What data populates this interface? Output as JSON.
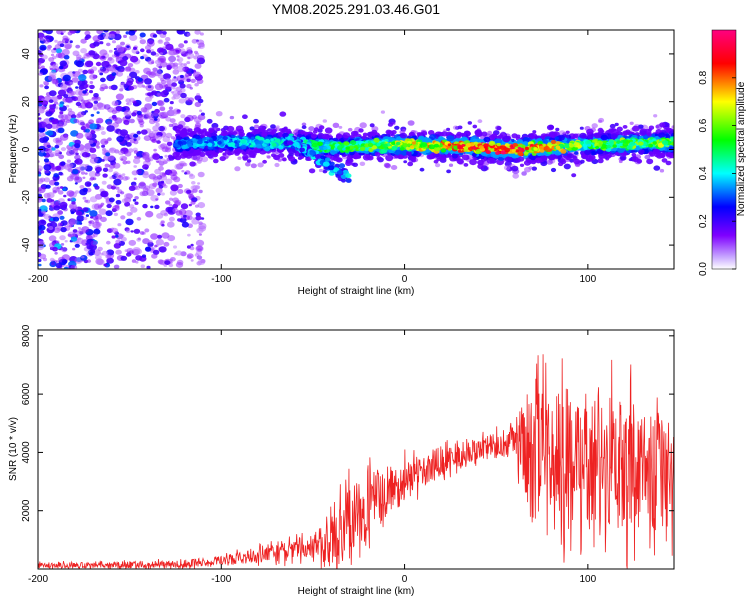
{
  "chart_data": [
    {
      "type": "heatmap",
      "title": "YM08.2025.291.03.46.G01",
      "xlabel": "Height of straight line (km)",
      "ylabel": "Frequency (Hz)",
      "xlim": [
        -200,
        147
      ],
      "ylim": [
        -50,
        50
      ],
      "x_ticks": [
        -200,
        -100,
        0,
        100
      ],
      "y_ticks": [
        -40,
        -20,
        0,
        20,
        40
      ],
      "colorbar": {
        "label": "Normalized spectral amplitude",
        "range": [
          0,
          1
        ],
        "ticks": [
          0.0,
          0.2,
          0.4,
          0.6,
          0.8
        ],
        "colormap": [
          "#ffffff",
          "#7f00ff",
          "#0000ff",
          "#00ffff",
          "#00ff00",
          "#ffff00",
          "#ff0000",
          "#ff0080"
        ]
      },
      "ridge": {
        "description": "narrow-band signal near 0 Hz",
        "x_start": -125,
        "x_end": 147,
        "center_freq": [
          [
            -125,
            2
          ],
          [
            -100,
            3
          ],
          [
            -60,
            3
          ],
          [
            -40,
            1
          ],
          [
            0,
            2
          ],
          [
            40,
            1
          ],
          [
            60,
            0
          ],
          [
            100,
            2
          ],
          [
            147,
            3
          ]
        ],
        "half_width_hz": 3,
        "peak_amplitude": [
          [
            -125,
            0.35
          ],
          [
            -60,
            0.45
          ],
          [
            -20,
            0.6
          ],
          [
            0,
            0.7
          ],
          [
            40,
            0.95
          ],
          [
            60,
            0.95
          ],
          [
            100,
            0.6
          ],
          [
            147,
            0.65
          ]
        ]
      },
      "noise_region": {
        "x_start": -200,
        "x_end": -110,
        "amplitude_range": [
          0.05,
          0.3
        ]
      },
      "streak": {
        "x": [
          -65,
          -30
        ],
        "freq": [
          5,
          -12
        ]
      }
    },
    {
      "type": "line",
      "title": "",
      "xlabel": "Height of straight line (km)",
      "ylabel": "SNR (10 * v/v)",
      "xlim": [
        -200,
        147
      ],
      "ylim": [
        0,
        8200
      ],
      "x_ticks": [
        -200,
        -100,
        0,
        100
      ],
      "y_ticks": [
        2000,
        4000,
        6000,
        8000
      ],
      "color": "#ee2222",
      "series": [
        {
          "name": "SNR",
          "envelope_mean": [
            [
              -200,
              130
            ],
            [
              -150,
              130
            ],
            [
              -120,
              170
            ],
            [
              -100,
              300
            ],
            [
              -80,
              450
            ],
            [
              -60,
              650
            ],
            [
              -40,
              1000
            ],
            [
              -30,
              1700
            ],
            [
              -20,
              2200
            ],
            [
              0,
              3000
            ],
            [
              20,
              3700
            ],
            [
              40,
              4100
            ],
            [
              55,
              4300
            ],
            [
              60,
              4600
            ],
            [
              70,
              3800
            ],
            [
              80,
              3500
            ],
            [
              90,
              3800
            ],
            [
              100,
              3700
            ],
            [
              120,
              3500
            ],
            [
              147,
              3300
            ]
          ],
          "envelope_spread": [
            [
              -200,
              80
            ],
            [
              -100,
              150
            ],
            [
              -50,
              400
            ],
            [
              -30,
              1200
            ],
            [
              -20,
              1100
            ],
            [
              0,
              700
            ],
            [
              40,
              350
            ],
            [
              60,
              600
            ],
            [
              70,
              2300
            ],
            [
              90,
              2600
            ],
            [
              147,
              2000
            ]
          ]
        }
      ]
    }
  ]
}
